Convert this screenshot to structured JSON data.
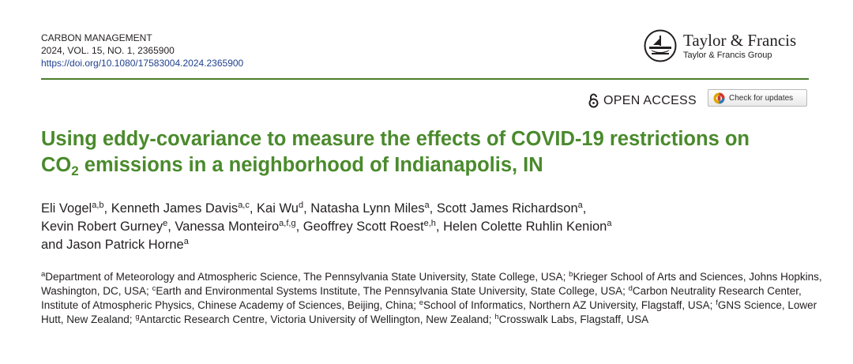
{
  "journal": {
    "name": "CARBON MANAGEMENT",
    "citation": "2024, VOL. 15, NO. 1, 2365900",
    "doi": "https://doi.org/10.1080/17583004.2024.2365900"
  },
  "publisher": {
    "name": "Taylor & Francis",
    "group": "Taylor & Francis Group"
  },
  "open_access": {
    "label": "OPEN ACCESS"
  },
  "check_updates": {
    "label": "Check for updates"
  },
  "title": {
    "line1": "Using eddy-covariance to measure the effects of COVID-19 restrictions on",
    "co": "CO",
    "subscript": "2",
    "line2_rest": " emissions in a neighborhood of Indianapolis, IN"
  },
  "authors": [
    {
      "name": "Eli Vogel",
      "aff": "a,b",
      "sep": ", "
    },
    {
      "name": "Kenneth James Davis",
      "aff": "a,c",
      "sep": ", "
    },
    {
      "name": "Kai Wu",
      "aff": "d",
      "sep": ", "
    },
    {
      "name": "Natasha Lynn Miles",
      "aff": "a",
      "sep": ", "
    },
    {
      "name": "Scott James Richardson",
      "aff": "a",
      "sep": ","
    },
    {
      "name": "Kevin Robert Gurney",
      "aff": "e",
      "sep": ", "
    },
    {
      "name": "Vanessa Monteiro",
      "aff": "a,f,g",
      "sep": ", "
    },
    {
      "name": "Geoffrey Scott Roest",
      "aff": "e,h",
      "sep": ", "
    },
    {
      "name": "Helen Colette Ruhlin Kenion",
      "aff": "a",
      "sep": ""
    },
    {
      "name": "and Jason Patrick Horne",
      "aff": "a",
      "sep": ""
    }
  ],
  "affiliations": [
    {
      "key": "a",
      "text": "Department of Meteorology and Atmospheric Science, The Pennsylvania State University, State College, USA; "
    },
    {
      "key": "b",
      "text": "Krieger School of Arts and Sciences, Johns Hopkins, Washington, DC, USA; "
    },
    {
      "key": "c",
      "text": "Earth and Environmental Systems Institute, The Pennsylvania State University, State College, USA; "
    },
    {
      "key": "d",
      "text": "Carbon Neutrality Research Center, Institute of Atmospheric Physics, Chinese Academy of Sciences, Beijing, China; "
    },
    {
      "key": "e",
      "text": "School of Informatics, Northern AZ University, Flagstaff, USA; "
    },
    {
      "key": "f",
      "text": "GNS Science, Lower Hutt, New Zealand; "
    },
    {
      "key": "g",
      "text": "Antarctic Research Centre, Victoria University of Wellington, New Zealand; "
    },
    {
      "key": "h",
      "text": "Crosswalk Labs, Flagstaff, USA"
    }
  ],
  "colors": {
    "title_green": "#4a8a2c",
    "rule_green": "#4a7c2c",
    "doi_blue": "#1f3f8f"
  },
  "icons": {
    "open_access": "open-lock-icon",
    "publisher": "tf-emblem-icon",
    "check_updates": "crossmark-icon"
  }
}
